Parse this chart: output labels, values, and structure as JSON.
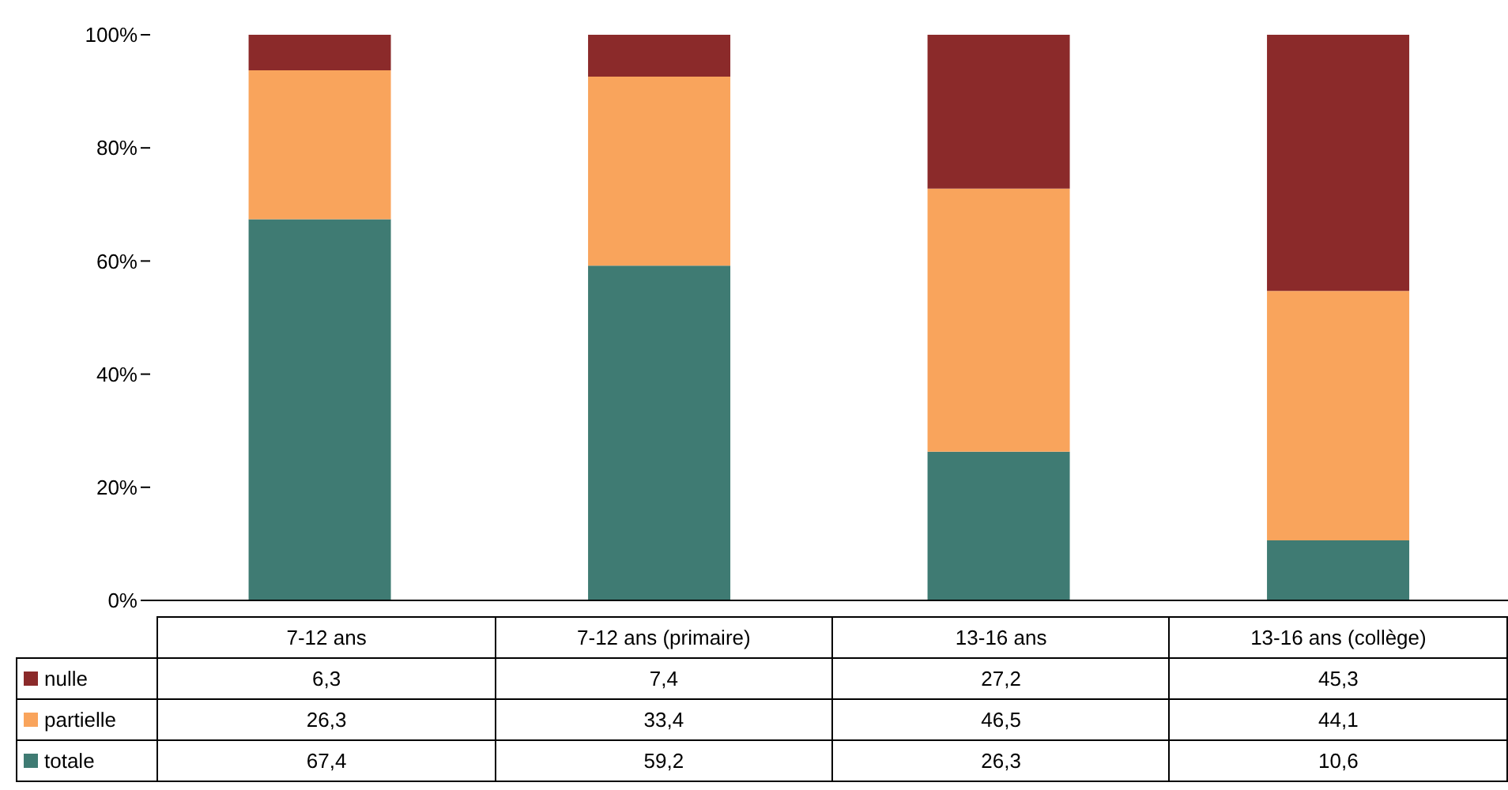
{
  "chart_data": {
    "type": "bar",
    "stacked": true,
    "categories": [
      "7-12 ans",
      "7-12 ans (primaire)",
      "13-16 ans",
      "13-16 ans (collège)"
    ],
    "ylim": [
      0,
      100
    ],
    "yticks": [
      {
        "value": 0,
        "label": "0%"
      },
      {
        "value": 20,
        "label": "20%"
      },
      {
        "value": 40,
        "label": "40%"
      },
      {
        "value": 60,
        "label": "60%"
      },
      {
        "value": 80,
        "label": "80%"
      },
      {
        "value": 100,
        "label": "100%"
      }
    ],
    "grid": false,
    "legend": "bottom",
    "series": [
      {
        "name": "totale",
        "color": "#3f7b73",
        "values": [
          67.4,
          59.2,
          26.3,
          10.6
        ],
        "value_labels": [
          "67,4",
          "59,2",
          "26,3",
          "10,6"
        ]
      },
      {
        "name": "partielle",
        "color": "#f9a45c",
        "values": [
          26.3,
          33.4,
          46.5,
          44.1
        ],
        "value_labels": [
          "26,3",
          "33,4",
          "46,5",
          "44,1"
        ]
      },
      {
        "name": "nulle",
        "color": "#8b2a2a",
        "values": [
          6.3,
          7.4,
          27.2,
          45.3
        ],
        "value_labels": [
          "6,3",
          "7,4",
          "27,2",
          "45,3"
        ]
      }
    ]
  }
}
